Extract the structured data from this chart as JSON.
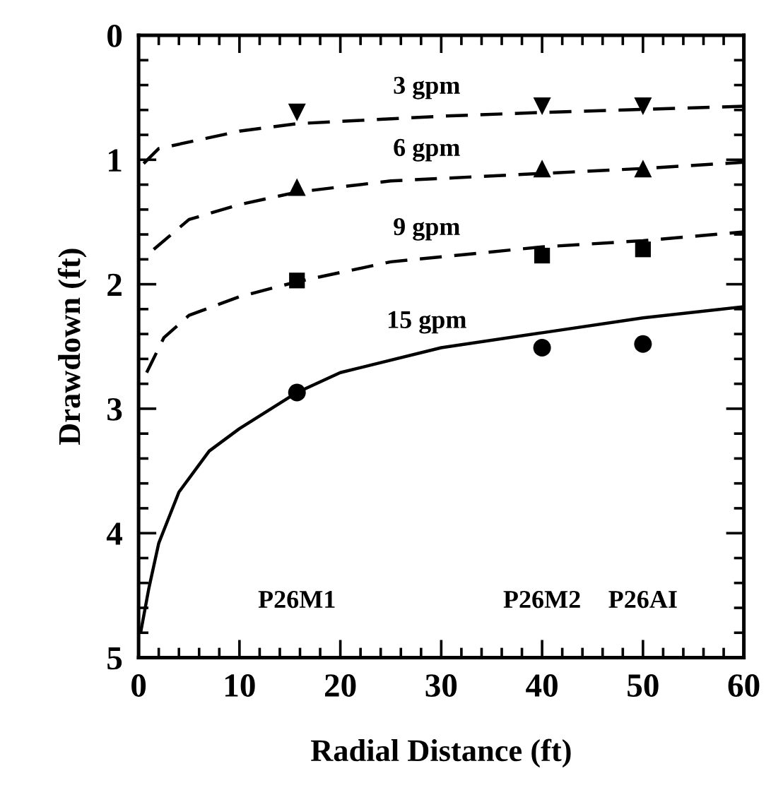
{
  "chart_data": {
    "type": "line",
    "xlabel": "Radial Distance (ft)",
    "ylabel": "Drawdown (ft)",
    "xlim": [
      0,
      60
    ],
    "ylim": [
      5,
      0
    ],
    "xticks": [
      0,
      {
        "value": 2,
        "label": null
      },
      {
        "value": 4,
        "label": null
      },
      {
        "value": 6,
        "label": null
      },
      {
        "value": 8,
        "label": null
      },
      10,
      {
        "value": 12,
        "label": null
      },
      {
        "value": 14,
        "label": null
      },
      {
        "value": 16,
        "label": null
      },
      {
        "value": 18,
        "label": null
      },
      20,
      {
        "value": 22,
        "label": null
      },
      {
        "value": 24,
        "label": null
      },
      {
        "value": 26,
        "label": null
      },
      {
        "value": 28,
        "label": null
      },
      30,
      {
        "value": 32,
        "label": null
      },
      {
        "value": 34,
        "label": null
      },
      {
        "value": 36,
        "label": null
      },
      {
        "value": 38,
        "label": null
      },
      40,
      {
        "value": 42,
        "label": null
      },
      {
        "value": 44,
        "label": null
      },
      {
        "value": 46,
        "label": null
      },
      {
        "value": 48,
        "label": null
      },
      50,
      {
        "value": 52,
        "label": null
      },
      {
        "value": 54,
        "label": null
      },
      {
        "value": 56,
        "label": null
      },
      {
        "value": 58,
        "label": null
      },
      60
    ],
    "yticks": [
      0,
      {
        "value": 0.2,
        "label": null
      },
      {
        "value": 0.4,
        "label": null
      },
      {
        "value": 0.6,
        "label": null
      },
      {
        "value": 0.8,
        "label": null
      },
      1,
      {
        "value": 1.2,
        "label": null
      },
      {
        "value": 1.4,
        "label": null
      },
      {
        "value": 1.6,
        "label": null
      },
      {
        "value": 1.8,
        "label": null
      },
      2,
      {
        "value": 2.2,
        "label": null
      },
      {
        "value": 2.4,
        "label": null
      },
      {
        "value": 2.6,
        "label": null
      },
      {
        "value": 2.8,
        "label": null
      },
      3,
      {
        "value": 3.2,
        "label": null
      },
      {
        "value": 3.4,
        "label": null
      },
      {
        "value": 3.6,
        "label": null
      },
      {
        "value": 3.8,
        "label": null
      },
      4,
      {
        "value": 4.2,
        "label": null
      },
      {
        "value": 4.4,
        "label": null
      },
      {
        "value": 4.6,
        "label": null
      },
      {
        "value": 4.8,
        "label": null
      },
      5
    ],
    "grid": false,
    "legend": false,
    "series": [
      {
        "line_style": "dashed",
        "marker": "none",
        "color": "#000000",
        "x": [
          0.5,
          2,
          10,
          15.7,
          30,
          40,
          60
        ],
        "values": [
          1.03,
          0.91,
          0.77,
          0.71,
          0.65,
          0.62,
          0.57
        ]
      },
      {
        "line_style": "dashed",
        "marker": "none",
        "color": "#000000",
        "x": [
          1.5,
          5,
          10,
          15.7,
          25,
          30,
          40,
          50,
          60
        ],
        "values": [
          1.72,
          1.48,
          1.36,
          1.26,
          1.17,
          1.15,
          1.11,
          1.07,
          1.02
        ]
      },
      {
        "line_style": "dashed",
        "marker": "none",
        "color": "#000000",
        "x": [
          0.8,
          2.5,
          5,
          10,
          15.7,
          25,
          40,
          50,
          60
        ],
        "values": [
          2.71,
          2.43,
          2.25,
          2.1,
          1.98,
          1.82,
          1.7,
          1.65,
          1.58
        ]
      },
      {
        "line_style": "solid",
        "marker": "none",
        "color": "#000000",
        "x": [
          0.2,
          1,
          2,
          4,
          7,
          10,
          15.7,
          20,
          30,
          40,
          50,
          60
        ],
        "values": [
          4.8,
          4.45,
          4.08,
          3.67,
          3.34,
          3.16,
          2.87,
          2.71,
          2.51,
          2.39,
          2.27,
          2.18
        ]
      },
      {
        "type": "scatter",
        "marker": "triangle-down",
        "color": "#000000",
        "x": [
          15.7,
          40,
          50
        ],
        "values": [
          0.62,
          0.57,
          0.57
        ]
      },
      {
        "type": "scatter",
        "marker": "triangle",
        "color": "#000000",
        "x": [
          15.7,
          40,
          50
        ],
        "values": [
          1.22,
          1.07,
          1.07
        ]
      },
      {
        "type": "scatter",
        "marker": "square",
        "color": "#000000",
        "x": [
          15.7,
          40,
          50
        ],
        "values": [
          1.97,
          1.77,
          1.72
        ]
      },
      {
        "type": "scatter",
        "marker": "circle",
        "color": "#000000",
        "x": [
          15.7,
          40,
          50
        ],
        "values": [
          2.87,
          2.51,
          2.48
        ]
      }
    ],
    "annotations": [
      "3 gpm",
      "6 gpm",
      "9 gpm",
      "15 gpm",
      "P26M1",
      "P26M2",
      "P26AI"
    ]
  }
}
